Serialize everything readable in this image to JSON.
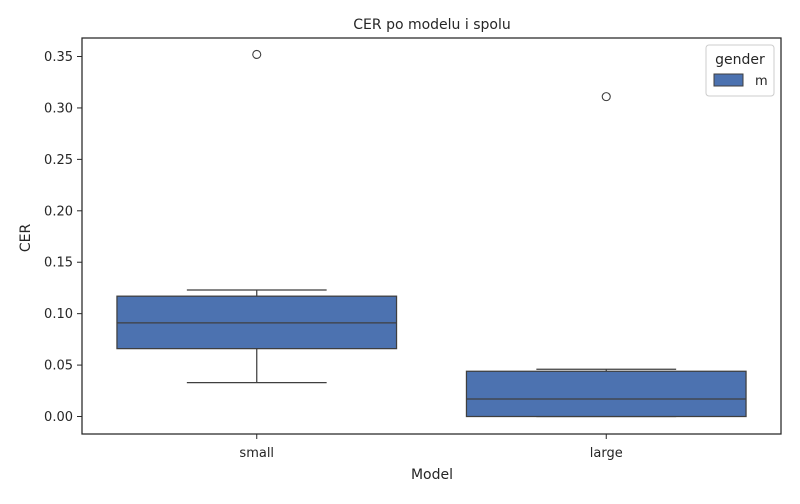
{
  "chart_data": {
    "type": "box",
    "title": "CER po modelu i spolu",
    "xlabel": "Model",
    "ylabel": "CER",
    "categories": [
      "small",
      "large"
    ],
    "ylim": [
      -0.017,
      0.368
    ],
    "yticks": [
      0.0,
      0.05,
      0.1,
      0.15,
      0.2,
      0.25,
      0.3,
      0.35
    ],
    "ytick_labels": [
      "0.00",
      "0.05",
      "0.10",
      "0.15",
      "0.20",
      "0.25",
      "0.30",
      "0.35"
    ],
    "grid": false,
    "legend": {
      "title": "gender",
      "placement": "top-right",
      "entries": [
        {
          "label": "m",
          "color": "#4c72b0"
        }
      ]
    },
    "series": [
      {
        "name": "m",
        "color": "#4c72b0",
        "boxes": [
          {
            "category": "small",
            "whisker_low": 0.033,
            "q1": 0.066,
            "median": 0.091,
            "q3": 0.117,
            "whisker_high": 0.123,
            "outliers": [
              0.352
            ]
          },
          {
            "category": "large",
            "whisker_low": 0.0,
            "q1": 0.0,
            "median": 0.017,
            "q3": 0.044,
            "whisker_high": 0.046,
            "outliers": [
              0.311
            ]
          }
        ]
      }
    ]
  }
}
